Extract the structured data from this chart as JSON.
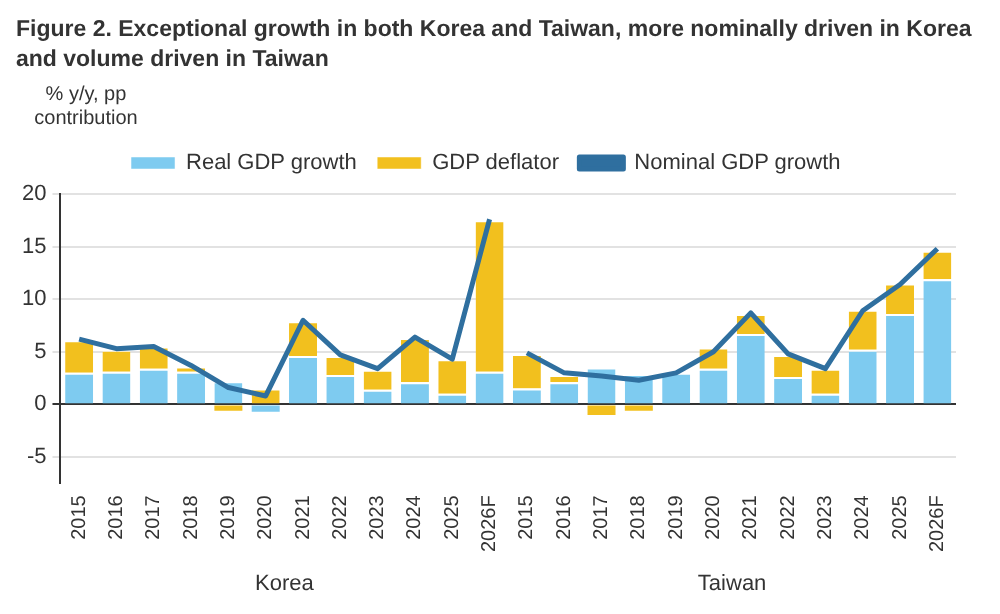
{
  "chart_data": {
    "type": "bar",
    "title": "Figure 2. Exceptional growth in both Korea and Taiwan, more nominally driven in Korea and volume driven in Taiwan",
    "ylabel": "% y/y, pp contribution",
    "categories": [
      "2015",
      "2016",
      "2017",
      "2018",
      "2019",
      "2020",
      "2021",
      "2022",
      "2023",
      "2024",
      "2025",
      "2026F",
      "2015",
      "2016",
      "2017",
      "2018",
      "2019",
      "2020",
      "2021",
      "2022",
      "2023",
      "2024",
      "2025",
      "2026F"
    ],
    "stacked": true,
    "series": [
      {
        "name": "Real GDP growth",
        "color": "#7ecbf0",
        "values": [
          3.0,
          3.1,
          3.4,
          3.1,
          2.2,
          -0.7,
          4.6,
          2.8,
          1.4,
          2.1,
          1.0,
          3.1,
          1.5,
          2.1,
          3.5,
          2.9,
          3.0,
          3.4,
          6.7,
          2.6,
          1.0,
          5.2,
          8.6,
          11.9
        ]
      },
      {
        "name": "GDP deflator",
        "color": "#f2c01e",
        "values": [
          3.1,
          2.1,
          2.1,
          0.5,
          -0.6,
          1.5,
          3.3,
          1.8,
          1.9,
          4.2,
          3.3,
          14.4,
          3.3,
          0.7,
          -1.0,
          -0.6,
          0.0,
          2.0,
          1.9,
          2.1,
          2.4,
          3.8,
          2.9,
          2.7
        ]
      },
      {
        "name": "Nominal GDP growth",
        "type": "line",
        "color": "#2f6f9f",
        "values": [
          6.2,
          5.3,
          5.5,
          3.7,
          1.6,
          0.8,
          8.0,
          4.7,
          3.4,
          6.4,
          4.3,
          17.6,
          null,
          null,
          null,
          null,
          null,
          null,
          null,
          null,
          null,
          null,
          null,
          null
        ]
      },
      {
        "type": "line",
        "color": "#2f6f9f",
        "values": [
          null,
          null,
          null,
          null,
          null,
          null,
          null,
          null,
          null,
          null,
          null,
          null,
          4.9,
          3.0,
          2.7,
          2.3,
          3.0,
          5.0,
          8.7,
          4.8,
          3.4,
          8.9,
          11.4,
          14.8
        ]
      }
    ],
    "ylim": [
      -7.5,
      20
    ],
    "yticks": [
      -5,
      0,
      5,
      10,
      15,
      20
    ],
    "grid": "y",
    "legend": "top",
    "annotations": [
      "Korea",
      "Taiwan"
    ]
  }
}
